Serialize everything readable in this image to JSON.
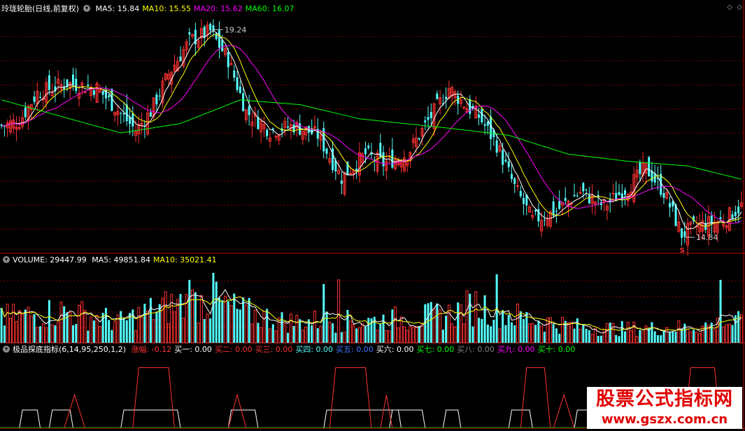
{
  "colors": {
    "bg": "#000000",
    "grid": "#800000",
    "up": "#ff3232",
    "down": "#54ffff",
    "ma5": "#ffffff",
    "ma10": "#ffff00",
    "ma20": "#ff00ff",
    "ma60": "#00ff00",
    "label": "#c0c0c0"
  },
  "price_header": {
    "icon": "chevron-down-icon",
    "title": "玲珑轮胎(日线,前复权)",
    "items": [
      {
        "label": "MA5: 15.84",
        "color": "#ffffff"
      },
      {
        "label": "MA10: 15.55",
        "color": "#ffff00"
      },
      {
        "label": "MA20: 15.62",
        "color": "#ff00ff"
      },
      {
        "label": "MA60: 16.07",
        "color": "#00ff00"
      }
    ],
    "high_label": "19.24",
    "low_label": "14.84",
    "marker": "S"
  },
  "volume_header": {
    "title": "VOLUME: 29447.99",
    "items": [
      {
        "label": "MA5: 49851.84",
        "color": "#ffffff"
      },
      {
        "label": "MA10: 35021.41",
        "color": "#ffff00"
      }
    ]
  },
  "indicator_header": {
    "title": "极品探底指标(6,14,95,250,1,2)",
    "items": [
      {
        "label": "涨幅: -0.12",
        "color": "#ff3232"
      },
      {
        "label": "买一: 0.00",
        "color": "#ffffff"
      },
      {
        "label": "买二: 0.00",
        "color": "#ff3232"
      },
      {
        "label": "买三: 0.00",
        "color": "#ff3232"
      },
      {
        "label": "买四: 0.00",
        "color": "#54ffff"
      },
      {
        "label": "买五: 0.00",
        "color": "#3c78ff"
      },
      {
        "label": "买六: 0.00",
        "color": "#ffffff"
      },
      {
        "label": "买七: 0.00",
        "color": "#00ff00"
      },
      {
        "label": "买八: 0.00",
        "color": "#808080"
      },
      {
        "label": "买九: 0.00",
        "color": "#ff00ff"
      },
      {
        "label": "买十: 0.00",
        "color": "#00ff00"
      }
    ]
  },
  "watermark": {
    "line1": "股票公式指标网",
    "line2": "www.gszx.com.cn"
  },
  "chart_data": [
    {
      "type": "candlestick",
      "panel": "price",
      "ylim": [
        14.5,
        19.6
      ],
      "high": 19.24,
      "low": 14.84,
      "close_knots": [
        [
          0,
          17.2
        ],
        [
          6,
          17.3
        ],
        [
          12,
          17.9
        ],
        [
          22,
          18.1
        ],
        [
          32,
          18.0
        ],
        [
          38,
          17.6
        ],
        [
          45,
          17.1
        ],
        [
          50,
          17.5
        ],
        [
          56,
          18.3
        ],
        [
          63,
          19.0
        ],
        [
          70,
          19.2
        ],
        [
          76,
          18.6
        ],
        [
          82,
          17.5
        ],
        [
          90,
          17.1
        ],
        [
          98,
          17.2
        ],
        [
          106,
          17.0
        ],
        [
          114,
          16.1
        ],
        [
          122,
          16.6
        ],
        [
          128,
          16.4
        ],
        [
          136,
          16.6
        ],
        [
          142,
          17.2
        ],
        [
          150,
          18.0
        ],
        [
          156,
          17.6
        ],
        [
          160,
          17.4
        ],
        [
          166,
          16.8
        ],
        [
          172,
          15.9
        ],
        [
          178,
          15.2
        ],
        [
          186,
          15.4
        ],
        [
          194,
          15.8
        ],
        [
          202,
          15.5
        ],
        [
          210,
          15.9
        ],
        [
          216,
          16.3
        ],
        [
          222,
          15.8
        ],
        [
          228,
          14.9
        ],
        [
          234,
          15.1
        ],
        [
          242,
          15.2
        ],
        [
          248,
          15.5
        ]
      ],
      "ma60_knots": [
        [
          0,
          17.75
        ],
        [
          20,
          17.4
        ],
        [
          40,
          17.05
        ],
        [
          60,
          17.25
        ],
        [
          80,
          17.75
        ],
        [
          100,
          17.65
        ],
        [
          120,
          17.35
        ],
        [
          150,
          17.15
        ],
        [
          170,
          17.0
        ],
        [
          190,
          16.6
        ],
        [
          210,
          16.45
        ],
        [
          230,
          16.35
        ],
        [
          248,
          16.07
        ]
      ]
    },
    {
      "type": "bar",
      "panel": "volume",
      "ylim": [
        0,
        110000
      ],
      "vol_knots": [
        [
          0,
          35000
        ],
        [
          10,
          40000
        ],
        [
          20,
          45000
        ],
        [
          30,
          38000
        ],
        [
          40,
          30000
        ],
        [
          50,
          45000
        ],
        [
          60,
          55000
        ],
        [
          70,
          60000
        ],
        [
          80,
          45000
        ],
        [
          95,
          30000
        ],
        [
          110,
          32000
        ],
        [
          120,
          30000
        ],
        [
          135,
          35000
        ],
        [
          150,
          40000
        ],
        [
          160,
          55000
        ],
        [
          170,
          40000
        ],
        [
          180,
          32000
        ],
        [
          195,
          22000
        ],
        [
          210,
          20000
        ],
        [
          230,
          22000
        ],
        [
          248,
          30000
        ]
      ]
    },
    {
      "type": "step-signal",
      "panel": "indicator",
      "white_pulses": [
        [
          6,
          13
        ],
        [
          16,
          24
        ],
        [
          40,
          60
        ],
        [
          76,
          86
        ],
        [
          108,
          134
        ],
        [
          130,
          142
        ],
        [
          148,
          154
        ],
        [
          170,
          178
        ],
        [
          192,
          202
        ],
        [
          235,
          248
        ]
      ],
      "red_pulses": [
        [
          21,
          28
        ],
        [
          44,
          58
        ],
        [
          76,
          82
        ],
        [
          110,
          124
        ],
        [
          127,
          131
        ],
        [
          174,
          184
        ],
        [
          185,
          192
        ],
        [
          215,
          221
        ],
        [
          229,
          241
        ]
      ],
      "ylim": [
        0,
        1.2
      ]
    }
  ]
}
